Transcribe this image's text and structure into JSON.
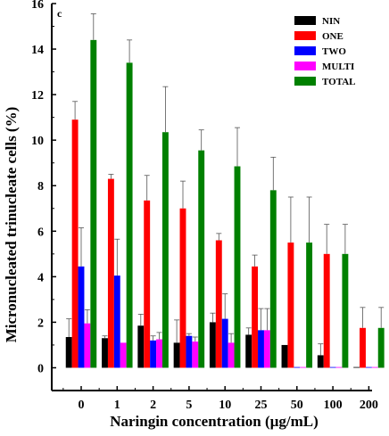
{
  "panel_label": "c",
  "chart_data": {
    "type": "bar",
    "title": "",
    "xlabel": "Naringin concentration (µg/mL)",
    "ylabel": "Micronucleated trinucleate cells (%)",
    "ylim": [
      -1,
      16
    ],
    "yticks": [
      0,
      2,
      4,
      6,
      8,
      10,
      12,
      14,
      16
    ],
    "categories": [
      "0",
      "1",
      "2",
      "5",
      "10",
      "25",
      "50",
      "100",
      "200"
    ],
    "legend_position": "top-right",
    "grid": false,
    "series": [
      {
        "name": "NIN",
        "color": "#000000",
        "values": [
          1.35,
          1.3,
          1.85,
          1.1,
          2.0,
          1.45,
          1.0,
          0.55,
          0.0
        ],
        "errors": [
          0.8,
          0.1,
          0.5,
          1.0,
          0.4,
          0.3,
          0.0,
          0.5,
          0.0
        ]
      },
      {
        "name": "ONE",
        "color": "#ff0000",
        "values": [
          10.9,
          8.3,
          7.35,
          7.0,
          5.6,
          4.45,
          5.5,
          5.0,
          1.75
        ],
        "errors": [
          0.8,
          0.2,
          1.1,
          1.2,
          0.3,
          0.5,
          2.0,
          1.3,
          0.9
        ]
      },
      {
        "name": "TWO",
        "color": "#0000ff",
        "values": [
          4.45,
          4.05,
          1.2,
          1.4,
          2.15,
          1.65,
          0.0,
          0.0,
          0.0
        ],
        "errors": [
          1.7,
          1.6,
          0.2,
          0.1,
          1.1,
          0.95,
          0.0,
          0.0,
          0.0
        ]
      },
      {
        "name": "MULTI",
        "color": "#ff00ff",
        "values": [
          1.95,
          1.1,
          1.25,
          1.15,
          1.1,
          1.65,
          0.0,
          0.0,
          0.0
        ],
        "errors": [
          0.6,
          0.0,
          0.3,
          0.2,
          0.4,
          0.95,
          0.0,
          0.0,
          0.0
        ]
      },
      {
        "name": "TOTAL",
        "color": "#008000",
        "values": [
          14.4,
          13.4,
          10.35,
          9.55,
          8.85,
          7.8,
          5.5,
          5.0,
          1.75
        ],
        "errors": [
          1.15,
          1.0,
          2.0,
          0.9,
          1.7,
          1.45,
          2.0,
          1.3,
          0.9
        ]
      }
    ]
  }
}
